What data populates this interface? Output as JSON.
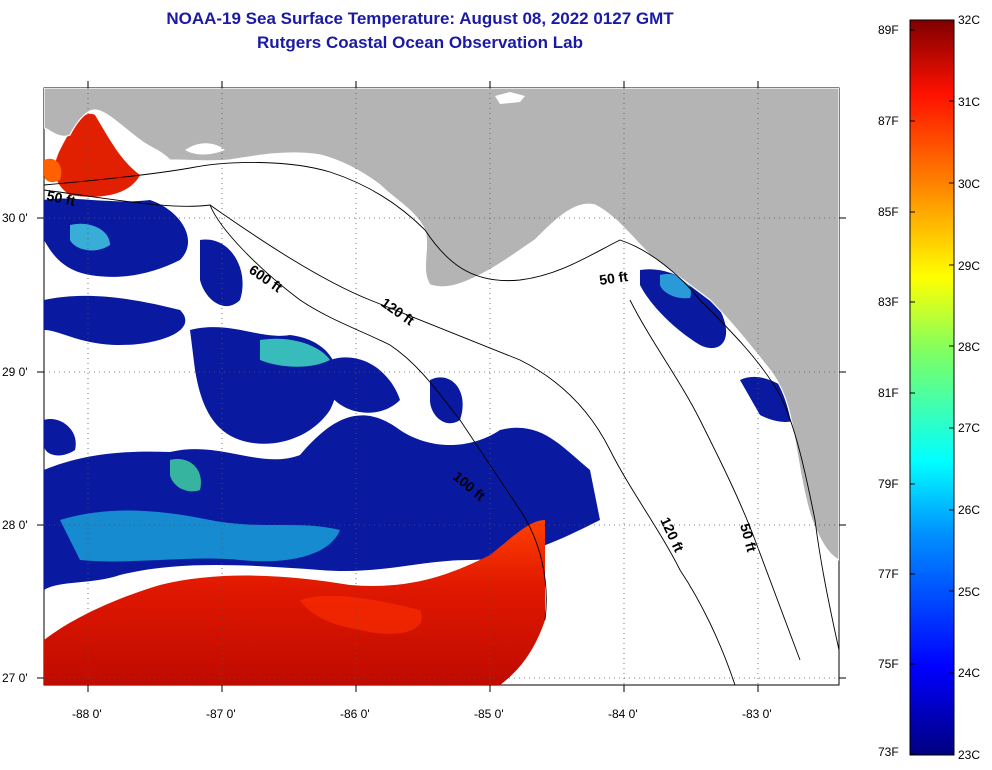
{
  "title_line1": "NOAA-19 Sea Surface Temperature:  August 08, 2022 0127 GMT",
  "title_line2": "Rutgers Coastal Ocean Observation Lab",
  "map": {
    "lon_ticks": [
      "-88 0'",
      "-87 0'",
      "-86 0'",
      "-85 0'",
      "-84 0'",
      "-83 0'"
    ],
    "lat_ticks": [
      "30 0'",
      "29 0'",
      "28 0'",
      "27 0'"
    ],
    "contour_labels": [
      "50 ft",
      "600 ft",
      "120 ft",
      "50 ft",
      "100 ft",
      "120 ft",
      "50 ft"
    ],
    "colors": {
      "land": "#b4b4b4",
      "cloud": "#ffffff",
      "cold": "#0a1aa0",
      "warm": "#e01a00"
    }
  },
  "colorbar": {
    "fahrenheit_labels": [
      "89F",
      "87F",
      "85F",
      "83F",
      "81F",
      "79F",
      "77F",
      "75F",
      "73F"
    ],
    "celsius_labels": [
      "32C",
      "31C",
      "30C",
      "29C",
      "28C",
      "27C",
      "26C",
      "25C",
      "24C",
      "23C"
    ]
  }
}
